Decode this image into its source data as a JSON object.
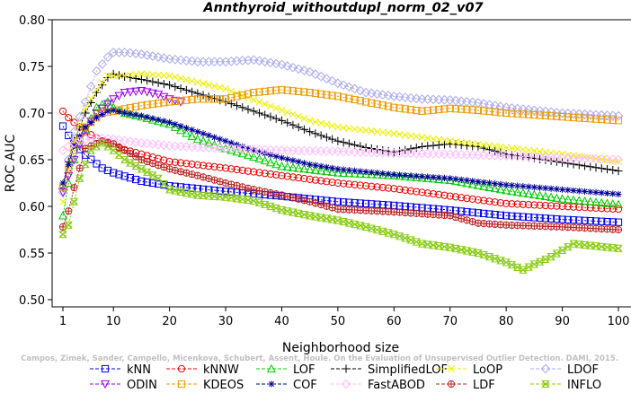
{
  "chart_data": {
    "type": "line",
    "title": "Annthyroid_withoutdupl_norm_02_v07",
    "xlabel": "Neighborhood size",
    "ylabel": "ROC AUC",
    "xlim": [
      1,
      100
    ],
    "ylim": [
      0.5,
      0.8
    ],
    "x_ticks": [
      "1",
      "10",
      "20",
      "30",
      "40",
      "50",
      "60",
      "70",
      "80",
      "90",
      "100"
    ],
    "y_ticks": [
      "0.50",
      "0.55",
      "0.60",
      "0.65",
      "0.70",
      "0.75",
      "0.80"
    ],
    "grid": false,
    "legend_placement": "bottom",
    "watermark": "Campos, Zimek, Sander, Campello, Micenkova, Schubert, Assent, Houle. On the Evaluation of Unsupervised Outlier Detection. DAMI, 2015.",
    "series": [
      {
        "name": "kNN",
        "color": "#0000ee",
        "marker": "square",
        "knots": [
          [
            1,
            0.686
          ],
          [
            2,
            0.676
          ],
          [
            3,
            0.667
          ],
          [
            5,
            0.655
          ],
          [
            8,
            0.641
          ],
          [
            10,
            0.636
          ],
          [
            15,
            0.627
          ],
          [
            20,
            0.622
          ],
          [
            30,
            0.616
          ],
          [
            40,
            0.611
          ],
          [
            50,
            0.605
          ],
          [
            60,
            0.601
          ],
          [
            70,
            0.596
          ],
          [
            80,
            0.59
          ],
          [
            90,
            0.586
          ],
          [
            100,
            0.583
          ]
        ]
      },
      {
        "name": "kNNW",
        "color": "#ee0000",
        "marker": "circle",
        "knots": [
          [
            1,
            0.702
          ],
          [
            2,
            0.695
          ],
          [
            3,
            0.69
          ],
          [
            5,
            0.68
          ],
          [
            8,
            0.67
          ],
          [
            10,
            0.664
          ],
          [
            15,
            0.656
          ],
          [
            20,
            0.648
          ],
          [
            30,
            0.641
          ],
          [
            40,
            0.633
          ],
          [
            50,
            0.625
          ],
          [
            60,
            0.619
          ],
          [
            70,
            0.611
          ],
          [
            80,
            0.603
          ],
          [
            90,
            0.6
          ],
          [
            100,
            0.597
          ]
        ]
      },
      {
        "name": "LOF",
        "color": "#00cc00",
        "marker": "triangle",
        "knots": [
          [
            1,
            0.59
          ],
          [
            2,
            0.625
          ],
          [
            3,
            0.65
          ],
          [
            5,
            0.682
          ],
          [
            7,
            0.706
          ],
          [
            9,
            0.712
          ],
          [
            10,
            0.706
          ],
          [
            12,
            0.7
          ],
          [
            15,
            0.696
          ],
          [
            20,
            0.688
          ],
          [
            25,
            0.672
          ],
          [
            30,
            0.662
          ],
          [
            35,
            0.653
          ],
          [
            40,
            0.643
          ],
          [
            50,
            0.636
          ],
          [
            60,
            0.633
          ],
          [
            70,
            0.628
          ],
          [
            80,
            0.617
          ],
          [
            90,
            0.608
          ],
          [
            100,
            0.602
          ]
        ]
      },
      {
        "name": "SimplifiedLOF",
        "color": "#000000",
        "marker": "plus",
        "knots": [
          [
            1,
            0.62
          ],
          [
            2,
            0.648
          ],
          [
            3,
            0.67
          ],
          [
            5,
            0.7
          ],
          [
            7,
            0.722
          ],
          [
            9,
            0.738
          ],
          [
            10,
            0.742
          ],
          [
            12,
            0.739
          ],
          [
            15,
            0.736
          ],
          [
            20,
            0.73
          ],
          [
            25,
            0.721
          ],
          [
            30,
            0.712
          ],
          [
            35,
            0.702
          ],
          [
            40,
            0.692
          ],
          [
            45,
            0.68
          ],
          [
            50,
            0.67
          ],
          [
            55,
            0.663
          ],
          [
            60,
            0.658
          ],
          [
            65,
            0.664
          ],
          [
            70,
            0.667
          ],
          [
            75,
            0.664
          ],
          [
            80,
            0.656
          ],
          [
            90,
            0.647
          ],
          [
            100,
            0.638
          ]
        ]
      },
      {
        "name": "LoOP",
        "color": "#eeee00",
        "marker": "x",
        "knots": [
          [
            1,
            0.605
          ],
          [
            2,
            0.64
          ],
          [
            3,
            0.67
          ],
          [
            5,
            0.705
          ],
          [
            7,
            0.725
          ],
          [
            9,
            0.74
          ],
          [
            10,
            0.74
          ],
          [
            12,
            0.74
          ],
          [
            15,
            0.742
          ],
          [
            20,
            0.74
          ],
          [
            25,
            0.733
          ],
          [
            30,
            0.726
          ],
          [
            35,
            0.714
          ],
          [
            40,
            0.703
          ],
          [
            45,
            0.692
          ],
          [
            50,
            0.685
          ],
          [
            60,
            0.678
          ],
          [
            70,
            0.67
          ],
          [
            80,
            0.663
          ],
          [
            90,
            0.656
          ],
          [
            100,
            0.648
          ]
        ]
      },
      {
        "name": "LDOF",
        "color": "#aaaaee",
        "marker": "diamond",
        "knots": [
          [
            1,
            0.615
          ],
          [
            2,
            0.65
          ],
          [
            3,
            0.68
          ],
          [
            5,
            0.712
          ],
          [
            7,
            0.745
          ],
          [
            9,
            0.76
          ],
          [
            10,
            0.765
          ],
          [
            12,
            0.765
          ],
          [
            15,
            0.763
          ],
          [
            20,
            0.758
          ],
          [
            25,
            0.755
          ],
          [
            30,
            0.755
          ],
          [
            35,
            0.757
          ],
          [
            40,
            0.752
          ],
          [
            45,
            0.744
          ],
          [
            50,
            0.732
          ],
          [
            55,
            0.722
          ],
          [
            60,
            0.718
          ],
          [
            65,
            0.715
          ],
          [
            70,
            0.714
          ],
          [
            75,
            0.711
          ],
          [
            80,
            0.706
          ],
          [
            90,
            0.7
          ],
          [
            100,
            0.697
          ]
        ]
      },
      {
        "name": "ODIN",
        "color": "#9900ee",
        "marker": "downtriangle",
        "knots": [
          [
            1,
            0.615
          ],
          [
            3,
            0.65
          ],
          [
            5,
            0.682
          ],
          [
            7,
            0.7
          ],
          [
            9,
            0.71
          ],
          [
            10,
            0.715
          ],
          [
            12,
            0.722
          ],
          [
            15,
            0.724
          ],
          [
            18,
            0.72
          ],
          [
            20,
            0.715
          ],
          [
            22,
            0.712
          ]
        ]
      },
      {
        "name": "KDEOS",
        "color": "#ee9900",
        "marker": "square",
        "knots": [
          [
            1,
            0.62
          ],
          [
            2,
            0.64
          ],
          [
            3,
            0.66
          ],
          [
            5,
            0.685
          ],
          [
            8,
            0.7
          ],
          [
            10,
            0.702
          ],
          [
            15,
            0.708
          ],
          [
            20,
            0.712
          ],
          [
            25,
            0.715
          ],
          [
            30,
            0.715
          ],
          [
            35,
            0.722
          ],
          [
            40,
            0.725
          ],
          [
            45,
            0.722
          ],
          [
            50,
            0.718
          ],
          [
            55,
            0.712
          ],
          [
            60,
            0.706
          ],
          [
            65,
            0.702
          ],
          [
            70,
            0.705
          ],
          [
            75,
            0.703
          ],
          [
            80,
            0.7
          ],
          [
            90,
            0.696
          ],
          [
            100,
            0.692
          ]
        ]
      },
      {
        "name": "COF",
        "color": "#000099",
        "marker": "star",
        "knots": [
          [
            1,
            0.625
          ],
          [
            2,
            0.645
          ],
          [
            3,
            0.665
          ],
          [
            5,
            0.685
          ],
          [
            7,
            0.695
          ],
          [
            9,
            0.702
          ],
          [
            10,
            0.703
          ],
          [
            12,
            0.7
          ],
          [
            15,
            0.697
          ],
          [
            20,
            0.69
          ],
          [
            25,
            0.68
          ],
          [
            30,
            0.67
          ],
          [
            35,
            0.66
          ],
          [
            40,
            0.652
          ],
          [
            45,
            0.645
          ],
          [
            50,
            0.64
          ],
          [
            60,
            0.634
          ],
          [
            70,
            0.63
          ],
          [
            80,
            0.623
          ],
          [
            90,
            0.618
          ],
          [
            100,
            0.613
          ]
        ]
      },
      {
        "name": "FastABOD",
        "color": "#ffbbff",
        "marker": "diamond",
        "knots": [
          [
            1,
            0.66
          ],
          [
            3,
            0.668
          ],
          [
            5,
            0.672
          ],
          [
            8,
            0.673
          ],
          [
            10,
            0.672
          ],
          [
            15,
            0.668
          ],
          [
            20,
            0.665
          ],
          [
            30,
            0.662
          ],
          [
            40,
            0.66
          ],
          [
            50,
            0.659
          ],
          [
            60,
            0.657
          ],
          [
            70,
            0.656
          ],
          [
            80,
            0.654
          ],
          [
            90,
            0.652
          ],
          [
            100,
            0.65
          ]
        ]
      },
      {
        "name": "LDF",
        "color": "#bb2222",
        "marker": "circleplus",
        "knots": [
          [
            1,
            0.578
          ],
          [
            2,
            0.595
          ],
          [
            3,
            0.62
          ],
          [
            5,
            0.662
          ],
          [
            8,
            0.67
          ],
          [
            10,
            0.667
          ],
          [
            12,
            0.66
          ],
          [
            15,
            0.65
          ],
          [
            20,
            0.64
          ],
          [
            25,
            0.633
          ],
          [
            30,
            0.625
          ],
          [
            35,
            0.618
          ],
          [
            40,
            0.612
          ],
          [
            45,
            0.605
          ],
          [
            50,
            0.597
          ],
          [
            60,
            0.594
          ],
          [
            65,
            0.592
          ],
          [
            70,
            0.59
          ],
          [
            75,
            0.582
          ],
          [
            80,
            0.58
          ],
          [
            90,
            0.578
          ],
          [
            100,
            0.575
          ]
        ]
      },
      {
        "name": "INFLO",
        "color": "#88cc11",
        "marker": "hourglass",
        "knots": [
          [
            1,
            0.57
          ],
          [
            2,
            0.58
          ],
          [
            3,
            0.605
          ],
          [
            4,
            0.63
          ],
          [
            6,
            0.66
          ],
          [
            8,
            0.668
          ],
          [
            10,
            0.66
          ],
          [
            12,
            0.65
          ],
          [
            15,
            0.64
          ],
          [
            18,
            0.63
          ],
          [
            20,
            0.618
          ],
          [
            25,
            0.612
          ],
          [
            30,
            0.61
          ],
          [
            35,
            0.606
          ],
          [
            40,
            0.596
          ],
          [
            45,
            0.59
          ],
          [
            50,
            0.585
          ],
          [
            55,
            0.578
          ],
          [
            60,
            0.57
          ],
          [
            65,
            0.56
          ],
          [
            70,
            0.556
          ],
          [
            75,
            0.55
          ],
          [
            80,
            0.54
          ],
          [
            83,
            0.532
          ],
          [
            85,
            0.538
          ],
          [
            88,
            0.546
          ],
          [
            92,
            0.56
          ],
          [
            95,
            0.558
          ],
          [
            100,
            0.555
          ]
        ]
      }
    ]
  }
}
